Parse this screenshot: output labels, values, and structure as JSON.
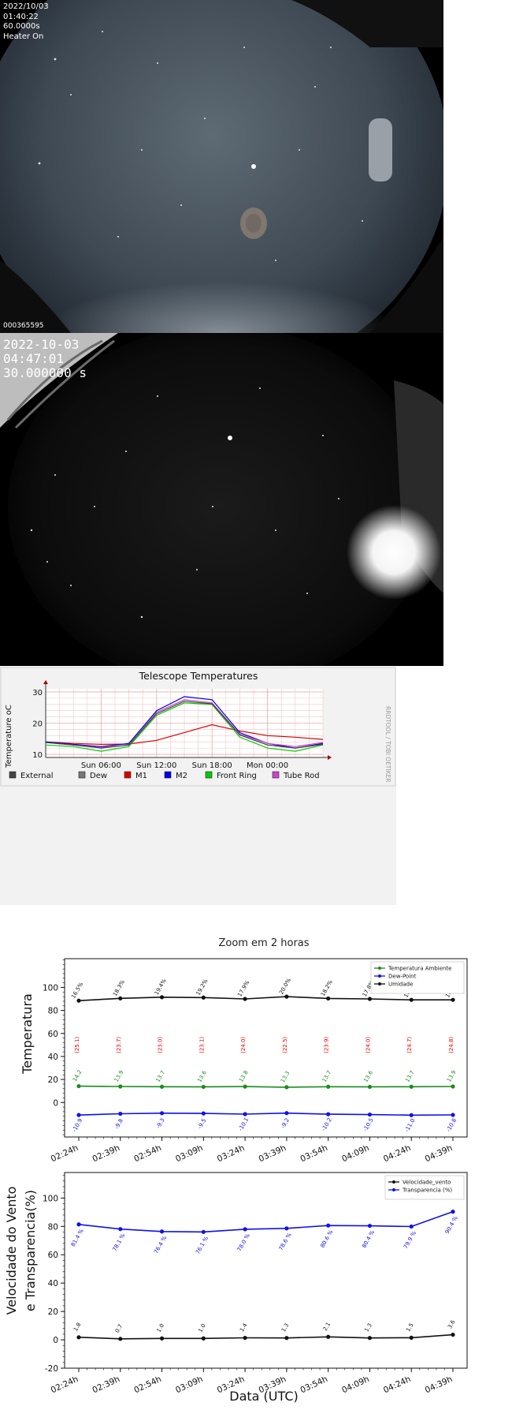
{
  "allsky1": {
    "date": "2022/10/03",
    "time": "01:40:22",
    "exposure": "60.0000s",
    "heater": "Heater On",
    "frame_id": "000365595"
  },
  "allsky2": {
    "date": "2022-10-03",
    "time": "04:47:01",
    "exposure": "30.000000 s"
  },
  "telescope_chart": {
    "title": "Telescope Temperatures",
    "ylabel": "Temperature oC",
    "watermark": "RRDTOOL / TOBI OETIKER",
    "yticks": [
      10,
      20,
      30
    ],
    "ylim": [
      9,
      31
    ],
    "xticks": [
      "Sun 06:00",
      "Sun 12:00",
      "Sun 18:00",
      "Mon 00:00"
    ],
    "legend": [
      {
        "name": "External",
        "color": "#444444"
      },
      {
        "name": "Dew",
        "color": "#777777"
      },
      {
        "name": "M1",
        "color": "#dd0000"
      },
      {
        "name": "M2",
        "color": "#0000ee"
      },
      {
        "name": "Front Ring",
        "color": "#00cc00"
      },
      {
        "name": "Tube Rod",
        "color": "#cc44cc"
      }
    ]
  },
  "chart_data": [
    {
      "type": "line",
      "title": "Telescope Temperatures",
      "ylabel": "Temperature oC",
      "x": [
        0,
        3,
        6,
        9,
        12,
        15,
        18,
        21,
        24,
        27,
        30
      ],
      "xlim": [
        0,
        30
      ],
      "xtick_positions": [
        6,
        12,
        18,
        24
      ],
      "series": [
        {
          "name": "M1",
          "color": "#dd0000",
          "values": [
            14,
            13.5,
            13.2,
            13.3,
            14.5,
            17,
            19.5,
            17.5,
            16,
            15.5,
            14.8
          ]
        },
        {
          "name": "M2",
          "color": "#0000ee",
          "values": [
            14,
            13.2,
            12.5,
            13.5,
            24,
            28.5,
            27.5,
            17,
            13.5,
            12,
            13.5
          ]
        },
        {
          "name": "Tube Rod",
          "color": "#cc44cc",
          "values": [
            13.8,
            13,
            12.2,
            13,
            23.5,
            27.5,
            26.5,
            16.5,
            13.5,
            12.5,
            13.8
          ]
        },
        {
          "name": "Front Ring",
          "color": "#00cc00",
          "values": [
            13,
            12.5,
            11,
            12.5,
            22.5,
            26.5,
            26,
            15.5,
            12,
            11,
            13
          ]
        },
        {
          "name": "External",
          "color": "#444444",
          "values": [
            13.8,
            13,
            12,
            13,
            23,
            27,
            26.2,
            16.2,
            13,
            12,
            13.2
          ]
        }
      ]
    },
    {
      "type": "line",
      "title": "Zoom em 2 horas",
      "ylabel": "Temperatura",
      "categories": [
        "02:24h",
        "02:39h",
        "02:54h",
        "03:09h",
        "03:24h",
        "03:39h",
        "03:54h",
        "04:09h",
        "04:24h",
        "04:39h"
      ],
      "yticks": [
        0,
        20,
        40,
        60,
        80,
        100
      ],
      "ylim": [
        -30,
        125
      ],
      "series": [
        {
          "name": "Temperatura Ambiente",
          "color": "#1a8c1a",
          "values": [
            14.2,
            13.9,
            13.7,
            13.6,
            13.8,
            13.3,
            13.7,
            13.6,
            13.7,
            13.9
          ],
          "labels": [
            "14.2",
            "13.9",
            "13.7",
            "13.6",
            "13.8",
            "13.3",
            "13.7",
            "13.6",
            "13.7",
            "13.9"
          ]
        },
        {
          "name": "Dew-Point",
          "color": "#1010ee",
          "values": [
            -10.9,
            -9.8,
            -9.3,
            -9.5,
            -10.1,
            -9.2,
            -10.2,
            -10.5,
            -11.0,
            -10.8
          ],
          "labels": [
            "-10.9",
            "-9.8",
            "-9.3",
            "-9.5",
            "-10.1",
            "-9.2",
            "-10.2",
            "-10.5",
            "-11.0",
            "-10.8"
          ]
        },
        {
          "name": "Umidade",
          "color": "#111111",
          "values": [
            88.5,
            90.5,
            91.5,
            91.2,
            90.0,
            92.0,
            90.4,
            90.0,
            89.2,
            89.2
          ],
          "labels": [
            "16.5%",
            "18.3%",
            "19.4%",
            "19.2%",
            "17.9%",
            "20.0%",
            "18.2%",
            "17.8%",
            "16.9%",
            "16.9%"
          ]
        }
      ],
      "annotations": [
        "(25.1)",
        "(23.7)",
        "(23.0)",
        "(23.1)",
        "(24.0)",
        "(22.5)",
        "(23.9)",
        "(24.0)",
        "(24.7)",
        "(24.8)"
      ]
    },
    {
      "type": "line",
      "ylabel": "Velocidade do Vento e Transparencia(%)",
      "xlabel": "Data (UTC)",
      "categories": [
        "02:24h",
        "02:39h",
        "02:54h",
        "03:09h",
        "03:24h",
        "03:39h",
        "03:54h",
        "04:09h",
        "04:24h",
        "04:39h"
      ],
      "yticks": [
        -20,
        0,
        20,
        40,
        60,
        80,
        100
      ],
      "ylim": [
        -20,
        118
      ],
      "series": [
        {
          "name": "Velocidade_vento",
          "color": "#111111",
          "values": [
            1.8,
            0.7,
            1.0,
            1.0,
            1.4,
            1.3,
            2.1,
            1.3,
            1.5,
            3.6
          ],
          "labels": [
            "1.8",
            "0.7",
            "1.0",
            "1.0",
            "1.4",
            "1.3",
            "2.1",
            "1.3",
            "1.5",
            "3.6"
          ]
        },
        {
          "name": "Transparencia (%)",
          "color": "#1010ee",
          "values": [
            81.4,
            78.1,
            76.4,
            76.1,
            78.0,
            78.6,
            80.6,
            80.4,
            79.9,
            90.4
          ],
          "labels": [
            "81.4 %",
            "78.1 %",
            "76.4 %",
            "76.1 %",
            "78.0 %",
            "78.6 %",
            "80.6 %",
            "80.4 %",
            "79.9 %",
            "90.4 %"
          ]
        }
      ]
    }
  ]
}
